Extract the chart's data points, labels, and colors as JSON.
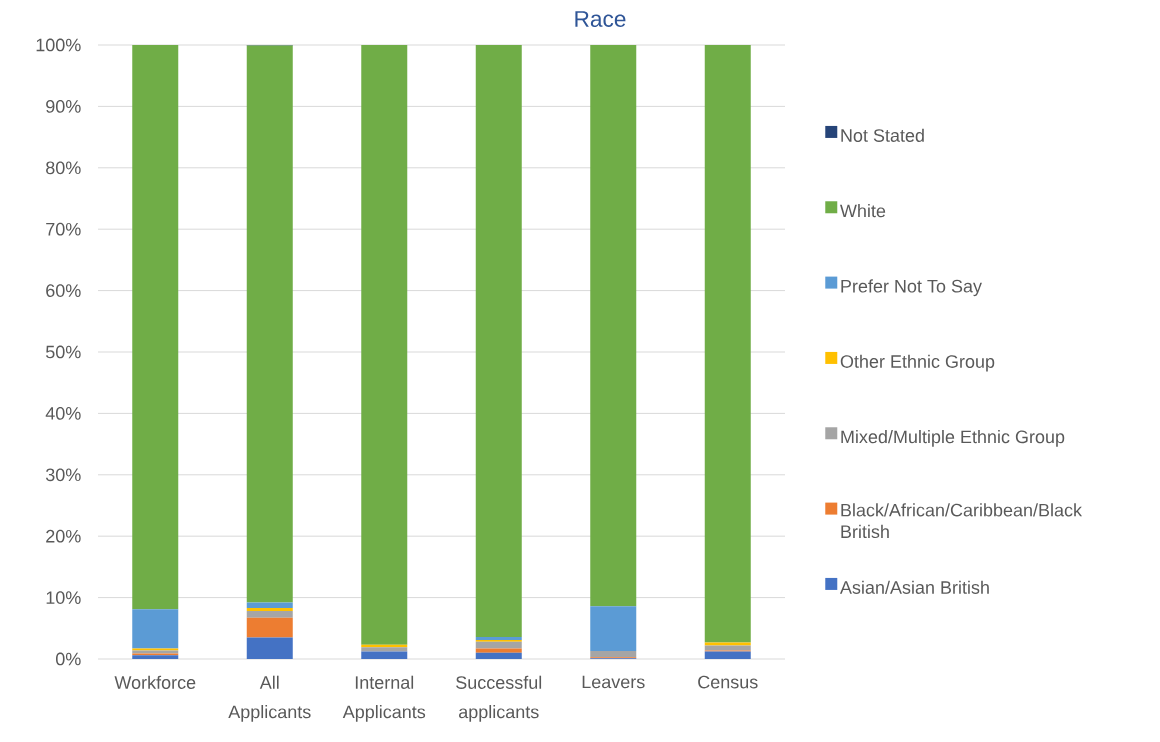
{
  "chart_data": {
    "type": "bar",
    "title": "Race",
    "stacked": true,
    "categories": [
      "Workforce",
      "All Applicants",
      "Internal Applicants",
      "Successful applicants",
      "Leavers",
      "Census"
    ],
    "series": [
      {
        "name": "Asian/Asian British",
        "color": "#4472c4",
        "values": [
          0.6,
          3.5,
          1.2,
          1.0,
          0.1,
          1.2
        ]
      },
      {
        "name": "Black/African/Caribbean/Black British",
        "color": "#ed7d31",
        "values": [
          0.3,
          3.2,
          0,
          0.7,
          0.2,
          0.2
        ]
      },
      {
        "name": "Mixed/Multiple Ethnic Group",
        "color": "#a5a5a5",
        "values": [
          0.5,
          1.1,
          0.7,
          1.1,
          1.0,
          0.8
        ]
      },
      {
        "name": "Other Ethnic Group",
        "color": "#ffc000",
        "values": [
          0.3,
          0.5,
          0.4,
          0.3,
          0,
          0.5
        ]
      },
      {
        "name": "Prefer Not To Say",
        "color": "#5b9bd5",
        "values": [
          6.4,
          0.9,
          0,
          0.5,
          7.3,
          0
        ]
      },
      {
        "name": "White",
        "color": "#70ad47",
        "values": [
          91.9,
          90.7,
          97.7,
          96.4,
          91.4,
          97.3
        ]
      },
      {
        "name": "Not Stated",
        "color": "#264478",
        "values": [
          0,
          0.1,
          0,
          0,
          0,
          0
        ]
      }
    ],
    "ylim": [
      0,
      100
    ],
    "yticks": [
      {
        "value": 0,
        "label": "0%"
      },
      {
        "value": 10,
        "label": "10%"
      },
      {
        "value": 20,
        "label": "20%"
      },
      {
        "value": 30,
        "label": "30%"
      },
      {
        "value": 40,
        "label": "40%"
      },
      {
        "value": 50,
        "label": "50%"
      },
      {
        "value": 60,
        "label": "60%"
      },
      {
        "value": 70,
        "label": "70%"
      },
      {
        "value": 80,
        "label": "80%"
      },
      {
        "value": 90,
        "label": "90%"
      },
      {
        "value": 100,
        "label": "100%"
      }
    ],
    "grid": "y",
    "legend": "right"
  }
}
